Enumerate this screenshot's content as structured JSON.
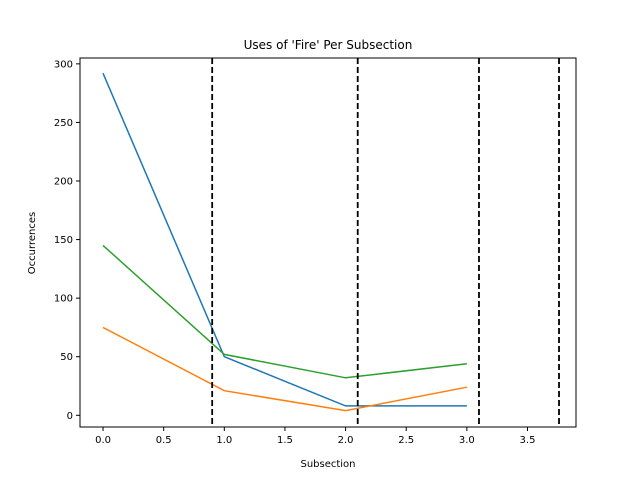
{
  "chart_data": {
    "type": "line",
    "title": "Uses of 'Fire' Per Subsection",
    "xlabel": "Subsection",
    "ylabel": "Occurrences",
    "xlim": [
      -0.19,
      3.9
    ],
    "ylim": [
      -10,
      305
    ],
    "xticks": [
      0.0,
      0.5,
      1.0,
      1.5,
      2.0,
      2.5,
      3.0,
      3.5
    ],
    "xtick_labels": [
      "0.0",
      "0.5",
      "1.0",
      "1.5",
      "2.0",
      "2.5",
      "3.0",
      "3.5"
    ],
    "yticks": [
      0,
      50,
      100,
      150,
      200,
      250,
      300
    ],
    "ytick_labels": [
      "0",
      "50",
      "100",
      "150",
      "200",
      "250",
      "300"
    ],
    "x": [
      0,
      1,
      2,
      3
    ],
    "series": [
      {
        "color": "#1f77b4",
        "values": [
          292,
          50,
          8,
          8
        ]
      },
      {
        "color": "#ff7f0e",
        "values": [
          75,
          21,
          4,
          24
        ]
      },
      {
        "color": "#2ca02c",
        "values": [
          145,
          52,
          32,
          44
        ]
      }
    ],
    "vlines": {
      "x": [
        0.9,
        2.1,
        3.1,
        3.76
      ],
      "color": "#000000",
      "style": "dashed"
    },
    "grid": false,
    "legend": "none"
  }
}
